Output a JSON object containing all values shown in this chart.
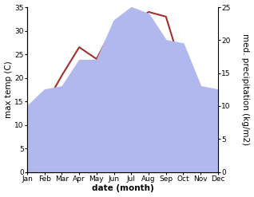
{
  "months": [
    "Jan",
    "Feb",
    "Mar",
    "Apr",
    "May",
    "Jun",
    "Jul",
    "Aug",
    "Sep",
    "Oct",
    "Nov",
    "Dec"
  ],
  "month_positions": [
    0,
    1,
    2,
    3,
    4,
    5,
    6,
    7,
    8,
    9,
    10,
    11
  ],
  "temperature": [
    8.5,
    14.0,
    20.5,
    26.5,
    24.0,
    31.0,
    31.5,
    34.0,
    33.0,
    21.0,
    13.0,
    9.0
  ],
  "precipitation": [
    10.0,
    12.5,
    13.0,
    17.0,
    17.0,
    23.0,
    25.0,
    24.0,
    20.0,
    19.5,
    13.0,
    12.5
  ],
  "temp_color": "#a03030",
  "precip_color": "#b0b8ee",
  "temp_ylim": [
    0,
    35
  ],
  "precip_ylim": [
    0,
    25
  ],
  "temp_yticks": [
    0,
    5,
    10,
    15,
    20,
    25,
    30,
    35
  ],
  "precip_yticks": [
    0,
    5,
    10,
    15,
    20,
    25
  ],
  "xlabel": "date (month)",
  "ylabel_left": "max temp (C)",
  "ylabel_right": "med. precipitation (kg/m2)",
  "background_color": "#ffffff",
  "label_fontsize": 7.5,
  "tick_fontsize": 6.5
}
